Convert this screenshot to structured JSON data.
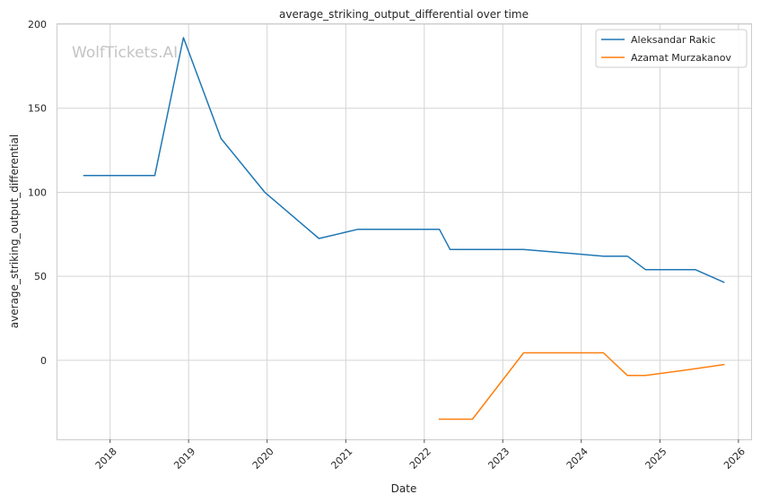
{
  "chart_data": {
    "type": "line",
    "title": "average_striking_output_differential over time",
    "xlabel": "Date",
    "ylabel": "average_striking_output_differential",
    "watermark": "WolfTickets.AI",
    "x_ticks": [
      "2018",
      "2019",
      "2020",
      "2021",
      "2022",
      "2023",
      "2024",
      "2025",
      "2026"
    ],
    "y_ticks": [
      "0",
      "50",
      "100",
      "150",
      "200"
    ],
    "xlim": [
      "2017-05-01",
      "2026-03-01"
    ],
    "ylim": [
      -47,
      200
    ],
    "grid": true,
    "legend_position": "top-right",
    "series": [
      {
        "name": "Aleksandar Rakic",
        "color": "#1f77b4",
        "points": [
          {
            "x": "2017-09-01",
            "y": 110
          },
          {
            "x": "2018-07-28",
            "y": 110
          },
          {
            "x": "2018-12-08",
            "y": 192
          },
          {
            "x": "2019-06-01",
            "y": 132
          },
          {
            "x": "2019-12-21",
            "y": 100
          },
          {
            "x": "2020-08-29",
            "y": 72.5
          },
          {
            "x": "2021-02-27",
            "y": 78
          },
          {
            "x": "2022-03-12",
            "y": 78
          },
          {
            "x": "2022-05-01",
            "y": 66
          },
          {
            "x": "2023-04-08",
            "y": 66
          },
          {
            "x": "2024-04-13",
            "y": 62
          },
          {
            "x": "2024-08-03",
            "y": 62
          },
          {
            "x": "2024-10-26",
            "y": 54
          },
          {
            "x": "2025-06-14",
            "y": 54
          },
          {
            "x": "2025-10-25",
            "y": 46.5
          }
        ]
      },
      {
        "name": "Azamat Murzakanov",
        "color": "#ff7f0e",
        "points": [
          {
            "x": "2022-03-12",
            "y": -35
          },
          {
            "x": "2022-08-13",
            "y": -35
          },
          {
            "x": "2023-04-08",
            "y": 4.5
          },
          {
            "x": "2024-04-13",
            "y": 4.5
          },
          {
            "x": "2024-08-03",
            "y": -9
          },
          {
            "x": "2024-10-26",
            "y": -9
          },
          {
            "x": "2025-06-14",
            "y": -5
          },
          {
            "x": "2025-10-25",
            "y": -2.5
          }
        ]
      }
    ]
  }
}
